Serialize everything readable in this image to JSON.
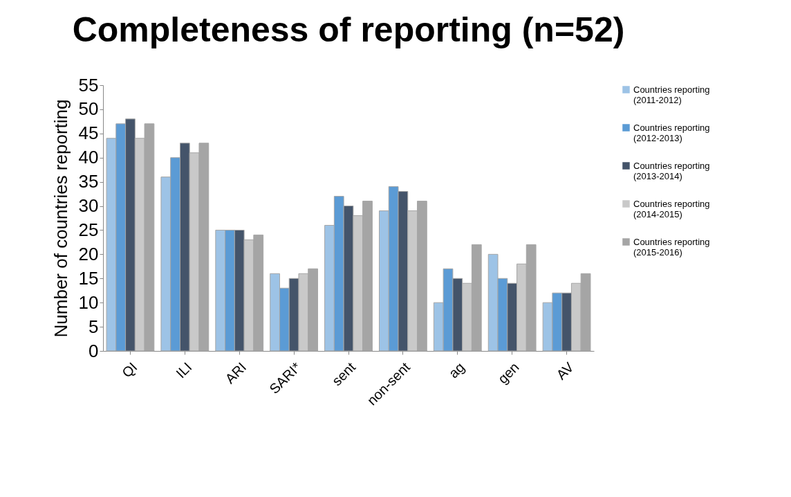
{
  "chart_data": {
    "type": "bar",
    "title": "Completeness of reporting (n=52)",
    "ylabel": "Number of countries  reporting",
    "categories": [
      "QI",
      "ILI",
      "ARI",
      "SARI*",
      "sent",
      "non-sent",
      "ag",
      "gen",
      "AV"
    ],
    "series": [
      {
        "name": "Countries reporting (2011-2012)",
        "color": "#9dc3e6",
        "values": [
          44,
          36,
          25,
          16,
          26,
          29,
          10,
          20,
          10
        ]
      },
      {
        "name": "Countries reporting (2012-2013)",
        "color": "#5b9bd5",
        "values": [
          47,
          40,
          25,
          13,
          32,
          34,
          17,
          15,
          12
        ]
      },
      {
        "name": "Countries reporting (2013-2014)",
        "color": "#44546a",
        "values": [
          48,
          43,
          25,
          15,
          30,
          33,
          15,
          14,
          12
        ]
      },
      {
        "name": "Countries reporting (2014-2015)",
        "color": "#c9c9c9",
        "values": [
          44,
          41,
          23,
          16,
          28,
          29,
          14,
          18,
          14
        ]
      },
      {
        "name": "Countries reporting (2015-2016)",
        "color": "#a5a5a5",
        "values": [
          47,
          43,
          24,
          17,
          31,
          31,
          22,
          22,
          16
        ]
      }
    ],
    "ylim": [
      0,
      55
    ],
    "yticks": [
      0,
      5,
      10,
      15,
      20,
      25,
      30,
      35,
      40,
      45,
      50,
      55
    ],
    "grid": false,
    "legend": "right"
  }
}
